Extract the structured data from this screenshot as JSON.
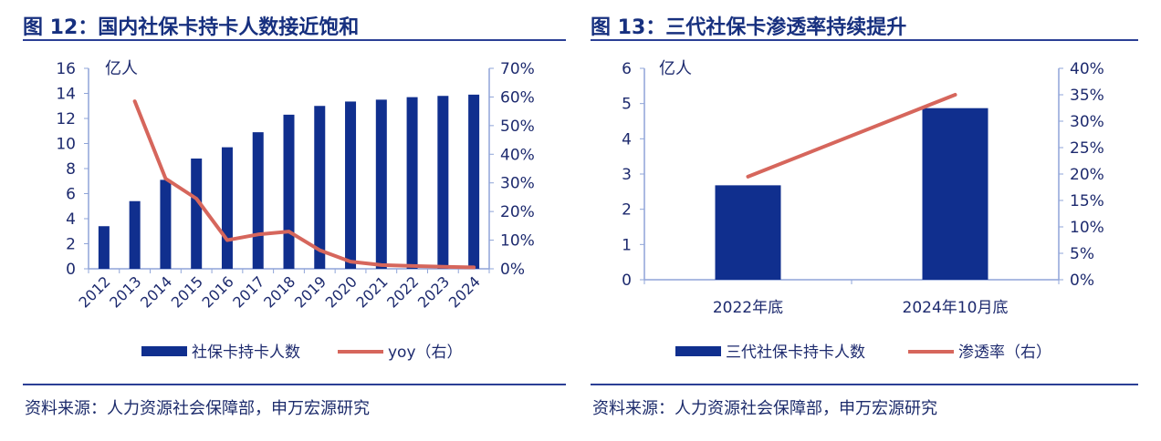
{
  "colors": {
    "bar": "#102f8e",
    "line": "#d6665c",
    "axis": "#8fa4d8",
    "text": "#1d2a6e"
  },
  "chart_data": [
    {
      "type": "bar",
      "title": "图 12：国内社保卡持卡人数接近饱和",
      "source": "资料来源：人力资源社会保障部，申万宏源研究",
      "unit_label": "亿人",
      "categories": [
        "2012",
        "2013",
        "2014",
        "2015",
        "2016",
        "2017",
        "2018",
        "2019",
        "2020",
        "2021",
        "2022",
        "2023",
        "2024"
      ],
      "series": [
        {
          "name": "社保卡持卡人数",
          "type": "bar",
          "axis": "left",
          "values": [
            3.4,
            5.4,
            7.1,
            8.8,
            9.7,
            10.9,
            12.3,
            13.0,
            13.35,
            13.5,
            13.7,
            13.8,
            13.9
          ]
        },
        {
          "name": "yoy（右）",
          "type": "line",
          "axis": "right",
          "values": [
            null,
            58.5,
            31.5,
            24.5,
            10,
            12,
            13,
            6.5,
            2.5,
            1.3,
            1.0,
            0.7,
            0.5
          ]
        }
      ],
      "ylim": [
        0,
        16
      ],
      "yticks": [
        "0",
        "2",
        "4",
        "6",
        "8",
        "10",
        "12",
        "14",
        "16"
      ],
      "y2lim": [
        0,
        70
      ],
      "y2ticks": [
        "0%",
        "10%",
        "20%",
        "30%",
        "40%",
        "50%",
        "60%",
        "70%"
      ],
      "legend": "bottom"
    },
    {
      "type": "bar",
      "title": "图 13：三代社保卡渗透率持续提升",
      "source": "资料来源：人力资源社会保障部，申万宏源研究",
      "unit_label": "亿人",
      "categories": [
        "2022年底",
        "2024年10月底"
      ],
      "series": [
        {
          "name": "三代社保卡持卡人数",
          "type": "bar",
          "axis": "left",
          "values": [
            2.68,
            4.87
          ]
        },
        {
          "name": "渗透率（右）",
          "type": "line",
          "axis": "right",
          "values": [
            19.5,
            35.0
          ]
        }
      ],
      "ylim": [
        0,
        6
      ],
      "yticks": [
        "0",
        "1",
        "2",
        "3",
        "4",
        "5",
        "6"
      ],
      "y2lim": [
        0,
        40
      ],
      "y2ticks": [
        "0%",
        "5%",
        "10%",
        "15%",
        "20%",
        "25%",
        "30%",
        "35%",
        "40%"
      ],
      "legend": "bottom"
    }
  ]
}
